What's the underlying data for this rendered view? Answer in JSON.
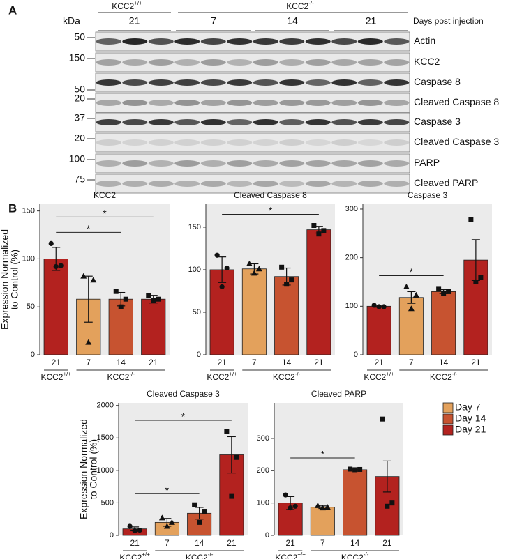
{
  "panel_labels": [
    "A",
    "B"
  ],
  "blot": {
    "kda_label": "kDa",
    "axis_label": "Days post injection",
    "groups": [
      {
        "text": "KCC2",
        "sup": "+/+"
      },
      {
        "text": "KCC2",
        "sup": "-/-"
      }
    ],
    "lanes": [
      "21",
      "7",
      "14",
      "21"
    ],
    "rows": [
      {
        "kda": 50,
        "label": "Actin"
      },
      {
        "kda": 150,
        "label": "KCC2"
      },
      {
        "kda": 50,
        "label": "Caspase 8"
      },
      {
        "kda": 20,
        "label": "Cleaved Caspase 8"
      },
      {
        "kda": 37,
        "label": "Caspase 3"
      },
      {
        "kda": 20,
        "label": "Cleaved Caspase 3"
      },
      {
        "kda": 100,
        "label": "PARP"
      },
      {
        "kda": 75,
        "label": "Cleaved PARP"
      }
    ]
  },
  "legend": [
    {
      "label": "Day 7",
      "color": "#e3a15c"
    },
    {
      "label": "Day 14",
      "color": "#c75330"
    },
    {
      "label": "Day 21",
      "color": "#b3221f"
    }
  ],
  "chart_data": [
    {
      "type": "bar",
      "title": "KCC2",
      "ylabel": [
        "Expression Normalized",
        "to Control (%)"
      ],
      "categories": [
        "21",
        "7",
        "14",
        "21"
      ],
      "groups": [
        {
          "text": "KCC2",
          "sup": "+/+",
          "span": [
            0,
            0
          ]
        },
        {
          "text": "KCC2",
          "sup": "-/-",
          "span": [
            1,
            3
          ]
        }
      ],
      "colors": [
        "#b3221f",
        "#e3a15c",
        "#c75330",
        "#b3221f"
      ],
      "markers": [
        "circle",
        "triangle",
        "square",
        "square"
      ],
      "values": [
        100,
        58,
        58,
        58
      ],
      "errors": [
        12,
        24,
        7,
        4
      ],
      "points": [
        [
          116,
          93,
          92
        ],
        [
          82,
          78,
          13
        ],
        [
          66,
          58,
          50
        ],
        [
          62,
          58,
          57
        ]
      ],
      "ylim": [
        0,
        157
      ],
      "yticks": [
        0,
        50,
        100,
        150
      ],
      "significance": [
        {
          "from": 0,
          "to": 2,
          "label": "*"
        },
        {
          "from": 0,
          "to": 3,
          "label": "*"
        }
      ]
    },
    {
      "type": "bar",
      "title": "Cleaved Caspase 8",
      "categories": [
        "21",
        "7",
        "14",
        "21"
      ],
      "groups": [
        {
          "text": "KCC2",
          "sup": "+/+",
          "span": [
            0,
            0
          ]
        },
        {
          "text": "KCC2",
          "sup": "-/-",
          "span": [
            1,
            3
          ]
        }
      ],
      "colors": [
        "#b3221f",
        "#e3a15c",
        "#c75330",
        "#b3221f"
      ],
      "markers": [
        "circle",
        "triangle",
        "square",
        "square"
      ],
      "values": [
        100,
        101,
        92,
        147
      ],
      "errors": [
        15,
        6,
        10,
        4
      ],
      "points": [
        [
          117,
          102,
          80
        ],
        [
          107,
          101,
          96
        ],
        [
          103,
          88,
          83
        ],
        [
          152,
          146,
          142
        ]
      ],
      "ylim": [
        0,
        177
      ],
      "yticks": [
        0,
        50,
        100,
        150
      ],
      "significance": [
        {
          "from": 0,
          "to": 3,
          "label": "*"
        }
      ]
    },
    {
      "type": "bar",
      "title": "Caspase 3",
      "categories": [
        "21",
        "7",
        "14",
        "21"
      ],
      "groups": [
        {
          "text": "KCC2",
          "sup": "+/+",
          "span": [
            0,
            0
          ]
        },
        {
          "text": "KCC2",
          "sup": "-/-",
          "span": [
            1,
            3
          ]
        }
      ],
      "colors": [
        "#b3221f",
        "#e3a15c",
        "#c75330",
        "#b3221f"
      ],
      "markers": [
        "circle",
        "triangle",
        "square",
        "square"
      ],
      "values": [
        100,
        118,
        130,
        195
      ],
      "errors": [
        2,
        12,
        4,
        42
      ],
      "points": [
        [
          102,
          99,
          99
        ],
        [
          140,
          123,
          95
        ],
        [
          135,
          130,
          127
        ],
        [
          279,
          160,
          150
        ]
      ],
      "ylim": [
        0,
        310
      ],
      "yticks": [
        0,
        100,
        200,
        300
      ],
      "significance": [
        {
          "from": 0,
          "to": 2,
          "label": "*"
        }
      ]
    },
    {
      "type": "bar",
      "title": "Cleaved Caspase 3",
      "ylabel": [
        "Expression Normalized",
        "to Control (%)"
      ],
      "categories": [
        "21",
        "7",
        "14",
        "21"
      ],
      "groups": [
        {
          "text": "KCC2",
          "sup": "+/+",
          "span": [
            0,
            0
          ]
        },
        {
          "text": "KCC2",
          "sup": "-/-",
          "span": [
            1,
            3
          ]
        }
      ],
      "colors": [
        "#b3221f",
        "#e3a15c",
        "#c75330",
        "#b3221f"
      ],
      "markers": [
        "circle",
        "triangle",
        "square",
        "square"
      ],
      "values": [
        100,
        200,
        340,
        1240
      ],
      "errors": [
        30,
        60,
        90,
        280
      ],
      "points": [
        [
          140,
          80,
          70
        ],
        [
          270,
          200,
          140
        ],
        [
          470,
          370,
          200
        ],
        [
          1600,
          1200,
          600
        ]
      ],
      "ylim": [
        0,
        2040
      ],
      "yticks": [
        0,
        500,
        1000,
        1500,
        2000
      ],
      "significance": [
        {
          "from": 0,
          "to": 2,
          "label": "*"
        },
        {
          "from": 0,
          "to": 3,
          "label": "*"
        }
      ]
    },
    {
      "type": "bar",
      "title": "Cleaved PARP",
      "categories": [
        "21",
        "7",
        "14",
        "21"
      ],
      "groups": [
        {
          "text": "KCC2",
          "sup": "+/+",
          "span": [
            0,
            0
          ]
        },
        {
          "text": "KCC2",
          "sup": "-/-",
          "span": [
            1,
            3
          ]
        }
      ],
      "colors": [
        "#b3221f",
        "#e3a15c",
        "#c75330",
        "#b3221f"
      ],
      "markers": [
        "circle",
        "triangle",
        "square",
        "square"
      ],
      "values": [
        100,
        87,
        203,
        182
      ],
      "errors": [
        20,
        4,
        2,
        48
      ],
      "points": [
        [
          125,
          90,
          85
        ],
        [
          92,
          87,
          85
        ],
        [
          205,
          204,
          203
        ],
        [
          360,
          100,
          90
        ]
      ],
      "ylim": [
        0,
        410
      ],
      "yticks": [
        0,
        100,
        200,
        300
      ],
      "significance": [
        {
          "from": 0,
          "to": 2,
          "label": "*"
        }
      ]
    }
  ]
}
